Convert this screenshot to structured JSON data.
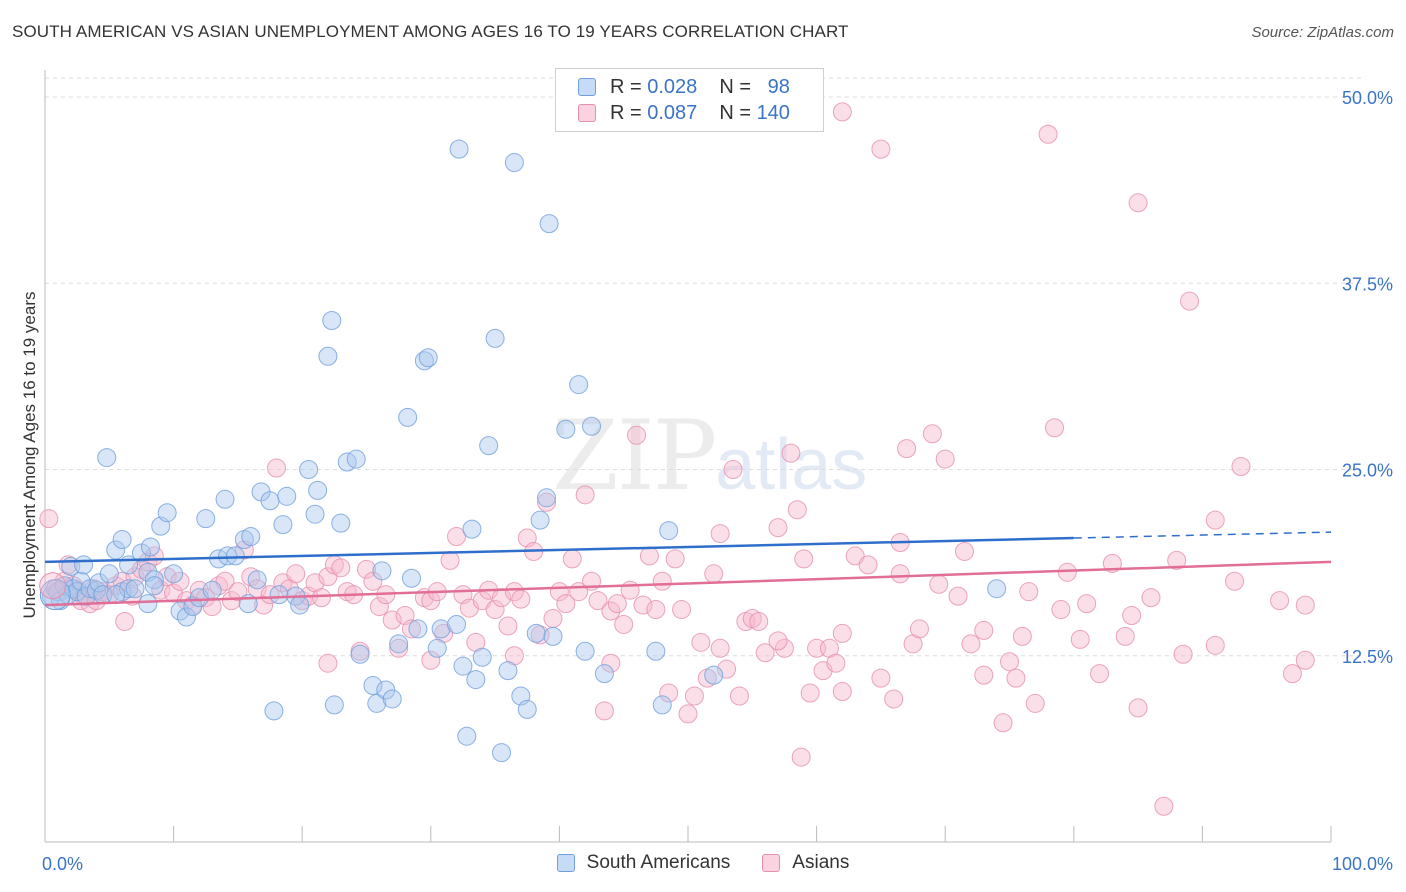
{
  "header": {
    "title": "SOUTH AMERICAN VS ASIAN UNEMPLOYMENT AMONG AGES 16 TO 19 YEARS CORRELATION CHART",
    "source": "Source: ZipAtlas.com"
  },
  "watermark": {
    "zip": "ZIP",
    "atlas": "atlas"
  },
  "legend": {
    "rows": [
      {
        "r_label": "R = ",
        "r_value": "0.028",
        "n_label": "N = ",
        "n_value": "98",
        "color": "#a9c8ee"
      },
      {
        "r_label": "R = ",
        "r_value": "0.087",
        "n_label": "N = ",
        "n_value": "140",
        "color": "#f6b7cc"
      }
    ]
  },
  "bottom_legend": {
    "items": [
      {
        "label": "South Americans",
        "color": "#a9c8ee"
      },
      {
        "label": "Asians",
        "color": "#f6b7cc"
      }
    ]
  },
  "chart_data": {
    "type": "scatter",
    "title": "SOUTH AMERICAN VS ASIAN UNEMPLOYMENT AMONG AGES 16 TO 19 YEARS CORRELATION CHART",
    "xlabel": "",
    "ylabel": "Unemployment Among Ages 16 to 19 years",
    "xlim": [
      0,
      100
    ],
    "ylim": [
      0,
      50
    ],
    "x_tick_labels": [
      "0.0%",
      "100.0%"
    ],
    "y_ticks": [
      12.5,
      25.0,
      37.5,
      50.0
    ],
    "y_tick_labels": [
      "12.5%",
      "25.0%",
      "37.5%",
      "50.0%"
    ],
    "grid": "horizontal dashed",
    "legend_position": "top-center",
    "series": [
      {
        "name": "South Americans",
        "color": "#a9c8ee",
        "stroke": "#6f9fdc",
        "trend": {
          "x": [
            0,
            80
          ],
          "y": [
            18.8,
            20.4
          ],
          "dashed_extension": [
            80,
            100,
            20.4,
            20.8
          ],
          "color": "#2f6fcc"
        },
        "points": [
          [
            0.5,
            16.5
          ],
          [
            0.8,
            17.0
          ],
          [
            1.0,
            16.8
          ],
          [
            1.2,
            16.2
          ],
          [
            1.5,
            17.2
          ],
          [
            1.8,
            16.6
          ],
          [
            2.0,
            18.5
          ],
          [
            2.2,
            17.0
          ],
          [
            2.5,
            16.8
          ],
          [
            2.8,
            17.5
          ],
          [
            3.0,
            18.6
          ],
          [
            3.2,
            16.5
          ],
          [
            3.5,
            17.0
          ],
          [
            4.0,
            16.9
          ],
          [
            4.2,
            17.4
          ],
          [
            4.5,
            16.6
          ],
          [
            5.0,
            18.0
          ],
          [
            5.5,
            19.6
          ],
          [
            6.0,
            16.8
          ],
          [
            6.5,
            17.0
          ],
          [
            4.8,
            25.8
          ],
          [
            5.5,
            16.6
          ],
          [
            6.0,
            20.3
          ],
          [
            6.5,
            18.6
          ],
          [
            7.0,
            17.0
          ],
          [
            7.5,
            19.4
          ],
          [
            8.0,
            18.1
          ],
          [
            8.5,
            17.6
          ],
          [
            8.2,
            19.8
          ],
          [
            9.0,
            21.2
          ],
          [
            8.0,
            16.0
          ],
          [
            8.5,
            17.2
          ],
          [
            9.5,
            22.1
          ],
          [
            10.0,
            18.0
          ],
          [
            10.5,
            15.5
          ],
          [
            11.0,
            15.1
          ],
          [
            11.5,
            15.8
          ],
          [
            12.0,
            16.4
          ],
          [
            12.5,
            21.7
          ],
          [
            13.0,
            16.9
          ],
          [
            13.5,
            19.0
          ],
          [
            14.0,
            23.0
          ],
          [
            14.2,
            19.2
          ],
          [
            14.8,
            19.2
          ],
          [
            15.5,
            20.3
          ],
          [
            15.8,
            16.0
          ],
          [
            16.0,
            20.5
          ],
          [
            16.5,
            17.6
          ],
          [
            16.8,
            23.5
          ],
          [
            17.5,
            22.9
          ],
          [
            17.8,
            8.8
          ],
          [
            18.2,
            16.6
          ],
          [
            18.5,
            21.3
          ],
          [
            18.8,
            23.2
          ],
          [
            19.5,
            16.5
          ],
          [
            19.8,
            15.9
          ],
          [
            20.5,
            25.0
          ],
          [
            21.0,
            22.0
          ],
          [
            21.2,
            23.6
          ],
          [
            22.0,
            32.6
          ],
          [
            22.5,
            9.2
          ],
          [
            22.3,
            35.0
          ],
          [
            23.0,
            21.4
          ],
          [
            23.5,
            25.5
          ],
          [
            24.2,
            25.7
          ],
          [
            24.5,
            12.6
          ],
          [
            25.5,
            10.5
          ],
          [
            25.8,
            9.3
          ],
          [
            26.2,
            18.2
          ],
          [
            26.5,
            10.2
          ],
          [
            27.0,
            9.6
          ],
          [
            27.5,
            13.3
          ],
          [
            28.2,
            28.5
          ],
          [
            28.5,
            17.7
          ],
          [
            29.0,
            14.3
          ],
          [
            29.5,
            32.3
          ],
          [
            29.8,
            32.5
          ],
          [
            30.5,
            13.0
          ],
          [
            30.8,
            14.3
          ],
          [
            32.0,
            14.6
          ],
          [
            32.2,
            46.5
          ],
          [
            32.5,
            11.8
          ],
          [
            32.8,
            7.1
          ],
          [
            33.2,
            21.0
          ],
          [
            33.5,
            10.9
          ],
          [
            34.0,
            12.4
          ],
          [
            34.5,
            26.6
          ],
          [
            35.0,
            33.8
          ],
          [
            35.5,
            6.0
          ],
          [
            36.0,
            11.5
          ],
          [
            36.5,
            45.6
          ],
          [
            37.0,
            9.8
          ],
          [
            37.5,
            8.9
          ],
          [
            38.2,
            14.0
          ],
          [
            38.5,
            21.6
          ],
          [
            39.0,
            23.1
          ],
          [
            39.2,
            41.5
          ],
          [
            39.5,
            13.8
          ],
          [
            40.5,
            27.7
          ],
          [
            41.5,
            30.7
          ],
          [
            42.0,
            12.8
          ],
          [
            42.5,
            27.9
          ],
          [
            43.5,
            11.3
          ],
          [
            47.5,
            12.8
          ],
          [
            48.0,
            9.2
          ],
          [
            48.5,
            20.9
          ],
          [
            52.0,
            11.2
          ],
          [
            74.0,
            17.0
          ]
        ]
      },
      {
        "name": "Asians",
        "color": "#f6b7cc",
        "stroke": "#e68fae",
        "trend": {
          "x": [
            0,
            100
          ],
          "y": [
            15.9,
            18.8
          ],
          "color": "#e06e96"
        },
        "points": [
          [
            0.3,
            21.7
          ],
          [
            0.8,
            17.0
          ],
          [
            1.2,
            16.8
          ],
          [
            1.5,
            17.5
          ],
          [
            1.8,
            18.6
          ],
          [
            2.2,
            17.2
          ],
          [
            2.5,
            16.9
          ],
          [
            2.8,
            16.2
          ],
          [
            3.0,
            16.5
          ],
          [
            3.5,
            16.0
          ],
          [
            3.8,
            17.0
          ],
          [
            4.0,
            16.2
          ],
          [
            4.5,
            16.8
          ],
          [
            5.0,
            16.6
          ],
          [
            5.5,
            17.2
          ],
          [
            6.0,
            17.5
          ],
          [
            6.2,
            14.8
          ],
          [
            6.8,
            16.5
          ],
          [
            7.0,
            17.8
          ],
          [
            7.5,
            18.3
          ],
          [
            8.0,
            18.8
          ],
          [
            8.5,
            19.2
          ],
          [
            9.0,
            16.9
          ],
          [
            9.5,
            17.8
          ],
          [
            10.0,
            16.7
          ],
          [
            10.5,
            17.5
          ],
          [
            11.0,
            16.2
          ],
          [
            11.5,
            15.9
          ],
          [
            12.0,
            16.9
          ],
          [
            12.5,
            16.4
          ],
          [
            13.0,
            15.8
          ],
          [
            13.5,
            17.2
          ],
          [
            14.0,
            17.5
          ],
          [
            14.5,
            16.2
          ],
          [
            15.0,
            16.8
          ],
          [
            15.5,
            19.6
          ],
          [
            16.0,
            17.8
          ],
          [
            16.5,
            17.0
          ],
          [
            17.0,
            15.9
          ],
          [
            17.5,
            16.6
          ],
          [
            18.0,
            25.1
          ],
          [
            18.5,
            17.4
          ],
          [
            19.0,
            17.0
          ],
          [
            19.5,
            18.0
          ],
          [
            20.0,
            16.2
          ],
          [
            20.5,
            16.5
          ],
          [
            21.0,
            17.4
          ],
          [
            21.5,
            16.4
          ],
          [
            22.0,
            17.8
          ],
          [
            22.5,
            18.6
          ],
          [
            23.0,
            18.4
          ],
          [
            23.5,
            16.8
          ],
          [
            24.0,
            16.6
          ],
          [
            24.5,
            12.8
          ],
          [
            25.0,
            18.3
          ],
          [
            25.5,
            17.5
          ],
          [
            26.0,
            15.8
          ],
          [
            26.5,
            16.6
          ],
          [
            27.0,
            14.9
          ],
          [
            27.5,
            13.0
          ],
          [
            28.0,
            15.2
          ],
          [
            28.5,
            14.3
          ],
          [
            29.5,
            16.4
          ],
          [
            30.0,
            16.2
          ],
          [
            30.5,
            16.8
          ],
          [
            31.0,
            14.0
          ],
          [
            31.5,
            18.9
          ],
          [
            32.0,
            20.5
          ],
          [
            32.5,
            16.6
          ],
          [
            33.0,
            15.7
          ],
          [
            33.5,
            13.4
          ],
          [
            34.0,
            16.2
          ],
          [
            34.5,
            16.9
          ],
          [
            35.0,
            15.6
          ],
          [
            35.5,
            16.4
          ],
          [
            36.0,
            14.5
          ],
          [
            36.5,
            16.8
          ],
          [
            37.0,
            16.3
          ],
          [
            37.5,
            20.4
          ],
          [
            38.0,
            19.5
          ],
          [
            38.5,
            13.9
          ],
          [
            39.0,
            22.8
          ],
          [
            39.5,
            15.0
          ],
          [
            40.0,
            16.8
          ],
          [
            40.5,
            16.0
          ],
          [
            41.0,
            19.0
          ],
          [
            41.5,
            16.8
          ],
          [
            42.0,
            23.3
          ],
          [
            42.5,
            17.5
          ],
          [
            43.0,
            16.2
          ],
          [
            43.5,
            8.8
          ],
          [
            44.0,
            15.5
          ],
          [
            44.5,
            16.0
          ],
          [
            45.0,
            14.6
          ],
          [
            45.5,
            16.9
          ],
          [
            46.0,
            27.3
          ],
          [
            46.5,
            15.9
          ],
          [
            47.0,
            19.2
          ],
          [
            48.0,
            17.5
          ],
          [
            48.5,
            10.0
          ],
          [
            49.0,
            19.0
          ],
          [
            49.5,
            15.6
          ],
          [
            50.0,
            8.6
          ],
          [
            50.5,
            9.8
          ],
          [
            51.0,
            13.4
          ],
          [
            51.5,
            11.0
          ],
          [
            52.0,
            18.0
          ],
          [
            52.5,
            20.7
          ],
          [
            53.0,
            11.6
          ],
          [
            53.5,
            25.0
          ],
          [
            54.0,
            9.8
          ],
          [
            54.5,
            14.8
          ],
          [
            55.0,
            15.0
          ],
          [
            55.5,
            14.8
          ],
          [
            56.0,
            12.7
          ],
          [
            57.0,
            21.1
          ],
          [
            57.5,
            13.0
          ],
          [
            58.0,
            26.1
          ],
          [
            58.5,
            22.3
          ],
          [
            58.8,
            5.7
          ],
          [
            59.5,
            10.0
          ],
          [
            60.0,
            13.0
          ],
          [
            60.5,
            11.5
          ],
          [
            61.0,
            13.0
          ],
          [
            61.5,
            12.0
          ],
          [
            62.0,
            10.1
          ],
          [
            63.0,
            19.2
          ],
          [
            64.0,
            18.6
          ],
          [
            65.0,
            11.0
          ],
          [
            66.0,
            9.6
          ],
          [
            66.5,
            20.1
          ],
          [
            67.0,
            26.4
          ],
          [
            67.5,
            13.3
          ],
          [
            68.0,
            14.3
          ],
          [
            69.0,
            27.4
          ],
          [
            70.0,
            25.7
          ],
          [
            71.0,
            16.5
          ],
          [
            72.0,
            13.3
          ],
          [
            73.0,
            11.2
          ],
          [
            74.5,
            8.0
          ],
          [
            75.0,
            12.1
          ],
          [
            75.5,
            11.0
          ],
          [
            76.0,
            13.8
          ],
          [
            77.0,
            9.3
          ],
          [
            78.5,
            27.8
          ],
          [
            79.0,
            15.6
          ],
          [
            80.5,
            13.6
          ],
          [
            81.0,
            16.0
          ],
          [
            82.0,
            11.3
          ],
          [
            83.0,
            18.7
          ],
          [
            84.5,
            15.2
          ],
          [
            87.0,
            2.4
          ],
          [
            88.5,
            12.6
          ],
          [
            88.0,
            18.9
          ],
          [
            89.0,
            36.3
          ],
          [
            91.0,
            21.6
          ],
          [
            93.0,
            25.2
          ],
          [
            97.0,
            11.3
          ],
          [
            85.0,
            9.0
          ],
          [
            62.0,
            14.0
          ],
          [
            57.0,
            13.5
          ],
          [
            52.5,
            13.0
          ],
          [
            47.5,
            15.6
          ],
          [
            44.0,
            12.0
          ],
          [
            36.5,
            12.5
          ],
          [
            30.0,
            12.2
          ],
          [
            22.0,
            12.0
          ],
          [
            73.0,
            14.2
          ],
          [
            69.5,
            17.3
          ],
          [
            79.5,
            18.1
          ],
          [
            86.0,
            16.4
          ],
          [
            92.5,
            17.5
          ],
          [
            96.0,
            16.2
          ],
          [
            98.0,
            15.9
          ],
          [
            91.0,
            13.2
          ],
          [
            84.0,
            13.8
          ],
          [
            76.5,
            16.8
          ],
          [
            71.5,
            19.5
          ],
          [
            66.5,
            18.0
          ],
          [
            59.0,
            19.0
          ]
        ],
        "extra_points": [
          [
            62.0,
            49.0
          ],
          [
            65.0,
            46.5
          ],
          [
            78.0,
            47.5
          ],
          [
            85.0,
            42.9
          ],
          [
            98.0,
            12.2
          ]
        ]
      }
    ]
  }
}
